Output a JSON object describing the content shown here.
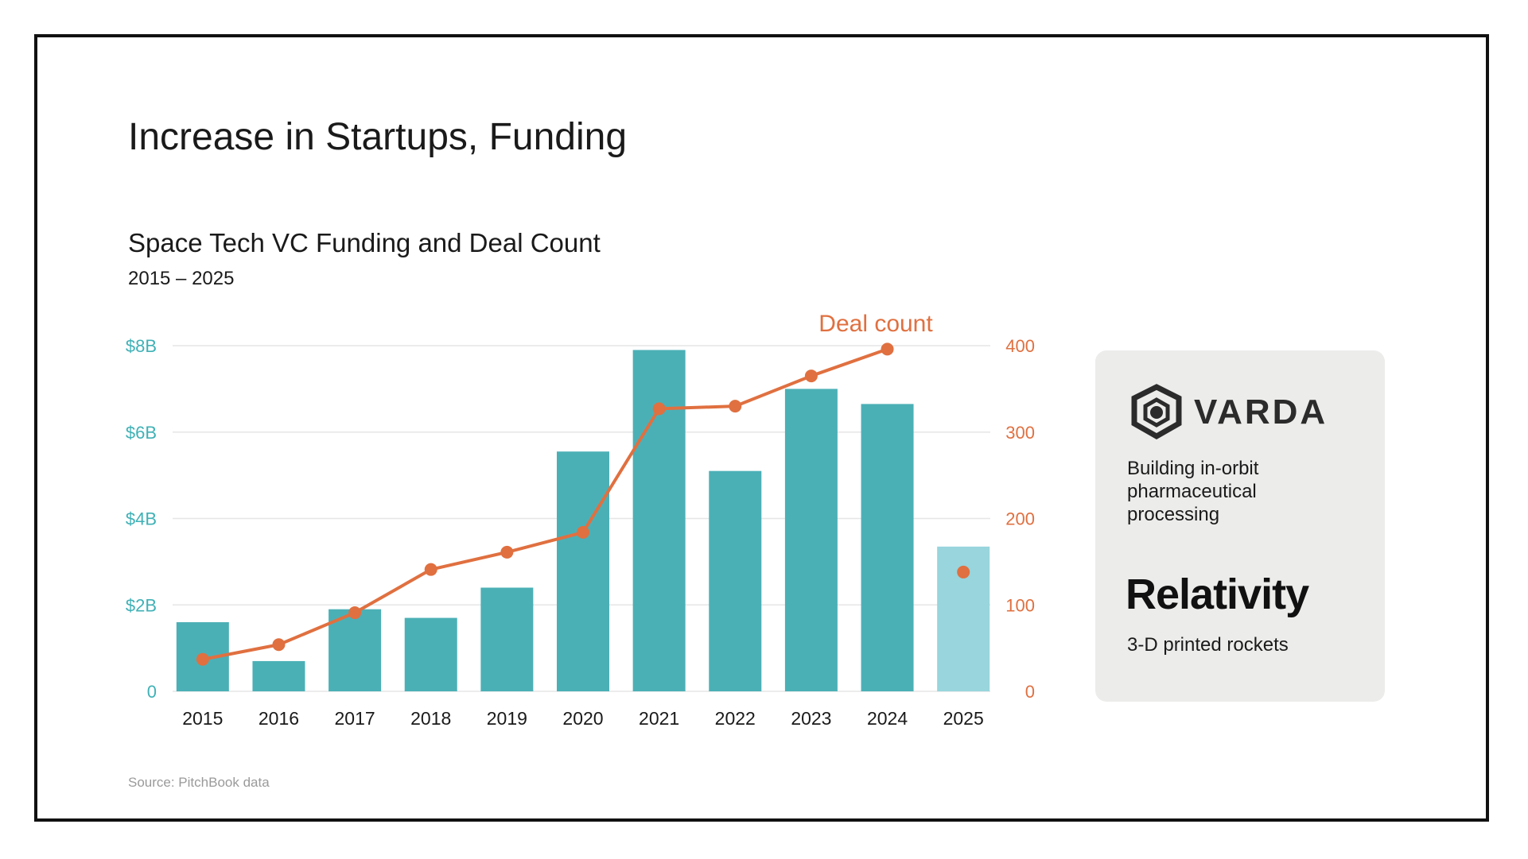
{
  "slide": {
    "title": "Increase in Startups, Funding",
    "source": "Source: PitchBook data"
  },
  "colors": {
    "bar": "#4bb0b6",
    "bar_partial": "#98d5dc",
    "line": "#e07040",
    "left_axis": "#3fb1b6",
    "right_axis": "#e07040",
    "grid": "#e6e6e6"
  },
  "chart_data": {
    "type": "bar",
    "title": "Space Tech VC Funding and Deal Count",
    "subtitle": "2015 – 2025",
    "categories": [
      "2015",
      "2016",
      "2017",
      "2018",
      "2019",
      "2020",
      "2021",
      "2022",
      "2023",
      "2024",
      "2025"
    ],
    "series": [
      {
        "type": "bar",
        "axis": "left",
        "values": [
          1.6,
          0.7,
          1.9,
          1.7,
          2.4,
          5.55,
          7.9,
          5.1,
          7.0,
          6.65,
          3.35
        ],
        "partial_categories": [
          "2025"
        ]
      },
      {
        "type": "line",
        "axis": "right",
        "name": "Deal count",
        "values": [
          37,
          54,
          91,
          141,
          161,
          184,
          327,
          330,
          365,
          396,
          138
        ],
        "disconnected_categories": [
          "2025"
        ]
      }
    ],
    "left_axis": {
      "ylim": [
        0,
        8
      ],
      "ticks": [
        0,
        2,
        4,
        6,
        8
      ],
      "tick_labels": [
        "0",
        "$2B",
        "$4B",
        "$6B",
        "$8B"
      ]
    },
    "right_axis": {
      "ylim": [
        0,
        400
      ],
      "ticks": [
        0,
        100,
        200,
        300,
        400
      ],
      "tick_labels": [
        "0",
        "100",
        "200",
        "300",
        "400"
      ]
    },
    "grid": true
  },
  "side_panel": {
    "varda": {
      "logo_text": "VARDA",
      "description": "Building in-orbit pharmaceutical processing"
    },
    "relativity": {
      "logo_text": "Relativity",
      "description": "3-D printed rockets"
    }
  }
}
